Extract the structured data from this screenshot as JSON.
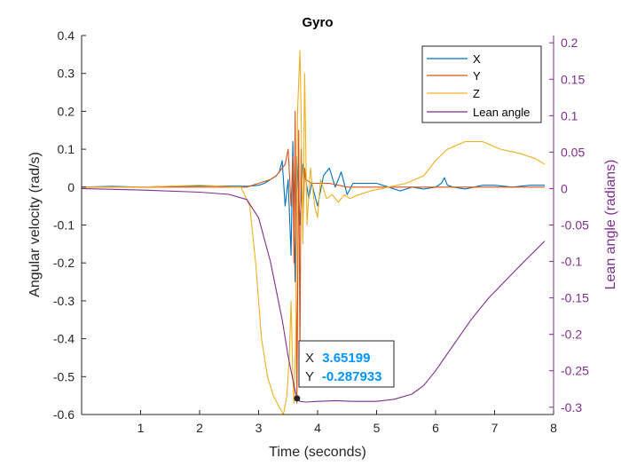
{
  "chart_data": {
    "type": "line",
    "title": "Gyro",
    "xlabel": "Time (seconds)",
    "ylabel": "Angular velocity (rad/s)",
    "y2label": "Lean angle (radians)",
    "xlim": [
      0,
      8
    ],
    "ylim": [
      -0.6,
      0.4
    ],
    "y2lim": [
      -0.31,
      0.21
    ],
    "xticks": [
      1,
      2,
      3,
      4,
      5,
      6,
      7,
      8
    ],
    "xtick_labels": [
      "1",
      "2",
      "3",
      "4",
      "5",
      "6",
      "7",
      "8"
    ],
    "yticks": [
      0.4,
      0.3,
      0.2,
      0.1,
      0,
      -0.1,
      -0.2,
      -0.3,
      -0.4,
      -0.5,
      -0.6
    ],
    "ytick_labels": [
      "0.4",
      "0.3",
      "0.2",
      "0.1",
      "0",
      "-0.1",
      "-0.2",
      "-0.3",
      "-0.4",
      "-0.5",
      "-0.6"
    ],
    "y2ticks": [
      0.2,
      0.15,
      0.1,
      0.05,
      0,
      -0.05,
      -0.1,
      -0.15,
      -0.2,
      -0.25,
      -0.3
    ],
    "y2tick_labels": [
      "0.2",
      "0.15",
      "0.1",
      "0.05",
      "0",
      "-0.05",
      "-0.1",
      "-0.15",
      "-0.2",
      "-0.25",
      "-0.3"
    ],
    "legend_position": "top-right",
    "grid": false,
    "series": [
      {
        "name": "X",
        "color": "#0072bd",
        "axis": "left",
        "x": [
          0,
          0.5,
          1,
          1.5,
          2,
          2.5,
          2.8,
          3.0,
          3.1,
          3.2,
          3.3,
          3.35,
          3.4,
          3.45,
          3.5,
          3.55,
          3.58,
          3.62,
          3.65,
          3.7,
          3.75,
          3.8,
          3.85,
          3.9,
          4.0,
          4.1,
          4.2,
          4.3,
          4.4,
          4.5,
          4.6,
          4.8,
          5.0,
          5.2,
          5.4,
          5.6,
          5.8,
          6.0,
          6.1,
          6.15,
          6.2,
          6.3,
          6.5,
          6.8,
          7.0,
          7.3,
          7.6,
          7.85
        ],
        "y": [
          0,
          0.002,
          0,
          0.002,
          0.003,
          0.003,
          0.002,
          0.005,
          0.01,
          0.02,
          0.03,
          0.04,
          0.07,
          -0.05,
          0.02,
          -0.18,
          0.12,
          -0.25,
          0.08,
          -0.1,
          0.06,
          0.02,
          -0.03,
          0.01,
          -0.05,
          0.03,
          0.05,
          0,
          0.04,
          -0.02,
          0.01,
          0.01,
          0.01,
          0,
          -0.01,
          0,
          -0.005,
          0,
          0.01,
          0.025,
          0.005,
          0,
          -0.005,
          0.005,
          0.005,
          0,
          0.005,
          0.005
        ]
      },
      {
        "name": "Y",
        "color": "#d95319",
        "axis": "left",
        "x": [
          0,
          0.5,
          1,
          1.5,
          2,
          2.5,
          2.8,
          3.0,
          3.2,
          3.3,
          3.4,
          3.45,
          3.5,
          3.55,
          3.58,
          3.6,
          3.62,
          3.65,
          3.68,
          3.7,
          3.72,
          3.75,
          3.78,
          3.8,
          3.9,
          4.0,
          4.2,
          4.5,
          5.0,
          5.5,
          6.0,
          6.5,
          7.0,
          7.5,
          7.85
        ],
        "y": [
          0,
          0,
          0,
          0,
          0,
          0,
          0,
          0.01,
          0.02,
          0.03,
          0.05,
          0.06,
          0.1,
          -0.05,
          0.08,
          -0.2,
          0.2,
          -0.57,
          0.15,
          -0.45,
          0.1,
          -0.1,
          0.05,
          0.02,
          0.01,
          0.01,
          0.01,
          0,
          0,
          0,
          0,
          0,
          0,
          0,
          0
        ]
      },
      {
        "name": "Z",
        "color": "#edb120",
        "axis": "left",
        "x": [
          0,
          1,
          2,
          2.7,
          2.85,
          2.95,
          3.05,
          3.15,
          3.25,
          3.35,
          3.42,
          3.48,
          3.52,
          3.55,
          3.58,
          3.6,
          3.63,
          3.66,
          3.7,
          3.72,
          3.75,
          3.78,
          3.82,
          3.88,
          3.95,
          4.0,
          4.05,
          4.15,
          4.25,
          4.35,
          4.45,
          4.55,
          4.7,
          4.9,
          5.2,
          5.5,
          5.8,
          6.0,
          6.2,
          6.5,
          6.8,
          7.1,
          7.4,
          7.7,
          7.85
        ],
        "y": [
          0,
          0,
          0.005,
          0,
          -0.05,
          -0.2,
          -0.4,
          -0.5,
          -0.55,
          -0.58,
          -0.6,
          -0.55,
          -0.45,
          -0.3,
          -0.5,
          -0.57,
          -0.4,
          0.2,
          0.36,
          0.2,
          -0.15,
          0.3,
          -0.1,
          0.05,
          -0.05,
          -0.08,
          0.02,
          -0.03,
          -0.02,
          -0.04,
          -0.02,
          -0.03,
          -0.02,
          -0.01,
          0,
          0.01,
          0.03,
          0.07,
          0.1,
          0.12,
          0.12,
          0.1,
          0.09,
          0.075,
          0.06
        ]
      },
      {
        "name": "Lean angle",
        "color": "#7e2f8e",
        "axis": "right",
        "x": [
          0,
          1,
          2,
          2.5,
          2.8,
          3.0,
          3.2,
          3.4,
          3.5,
          3.6,
          3.65,
          3.7,
          3.8,
          4.0,
          4.3,
          4.6,
          5.0,
          5.3,
          5.6,
          5.8,
          6.0,
          6.3,
          6.6,
          6.9,
          7.2,
          7.5,
          7.85
        ],
        "y": [
          0,
          -0.002,
          -0.005,
          -0.008,
          -0.015,
          -0.04,
          -0.1,
          -0.18,
          -0.23,
          -0.27,
          -0.288,
          -0.292,
          -0.293,
          -0.292,
          -0.291,
          -0.292,
          -0.292,
          -0.289,
          -0.282,
          -0.27,
          -0.25,
          -0.215,
          -0.18,
          -0.15,
          -0.125,
          -0.1,
          -0.072
        ]
      }
    ],
    "datatip": {
      "x_label": "X",
      "x_value": "3.65199",
      "y_label": "Y",
      "y_value": "-0.287933",
      "point": [
        3.65199,
        -0.287933
      ],
      "axis": "right"
    }
  }
}
